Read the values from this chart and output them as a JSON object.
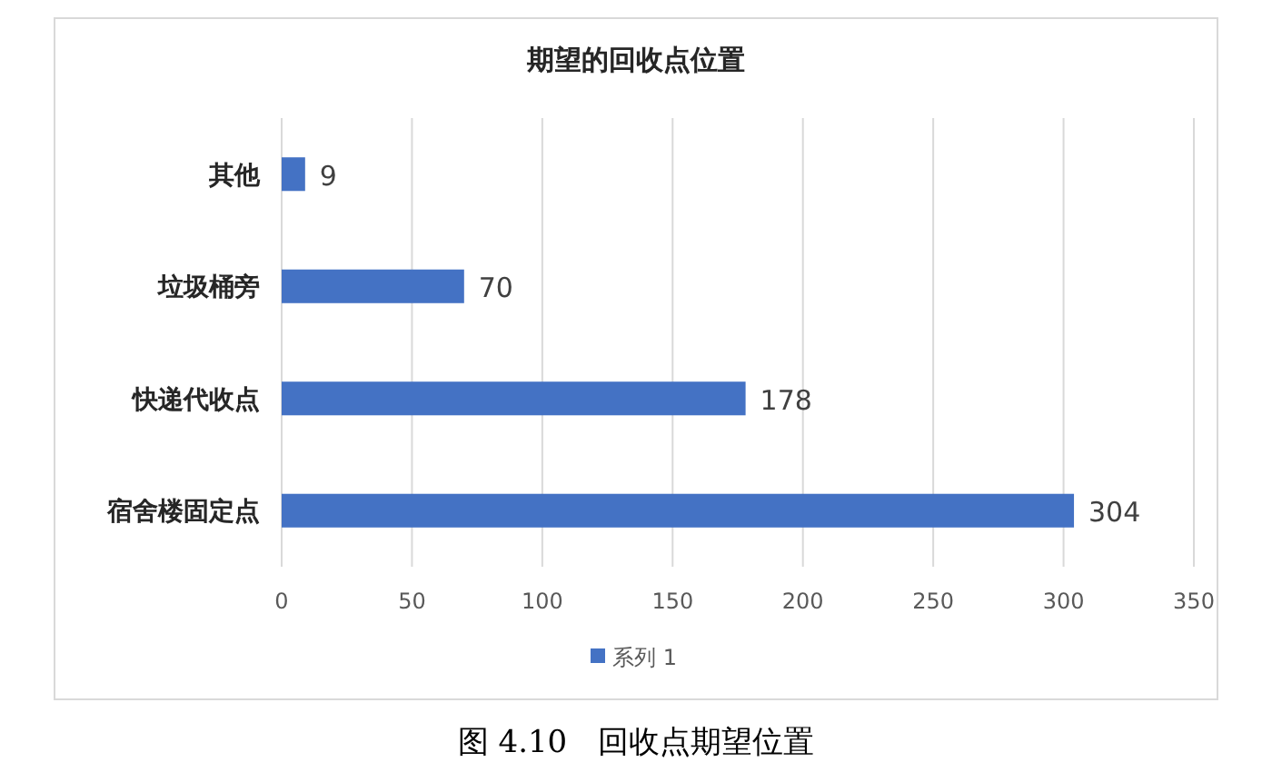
{
  "chart_data": {
    "type": "bar",
    "orientation": "horizontal",
    "title": "期望的回收点位置",
    "categories": [
      "其他",
      "垃圾桶旁",
      "快递代收点",
      "宿舍楼固定点"
    ],
    "series": [
      {
        "name": "系列 1",
        "color": "#4472c4",
        "values": [
          9,
          70,
          178,
          304
        ]
      }
    ],
    "xlim": [
      0,
      350
    ],
    "xticks": [
      0,
      50,
      100,
      150,
      200,
      250,
      300,
      350
    ],
    "grid": "x",
    "legend": "bottom",
    "data_labels": true,
    "annotations": [
      "图 4.10　回收点期望位置"
    ]
  }
}
